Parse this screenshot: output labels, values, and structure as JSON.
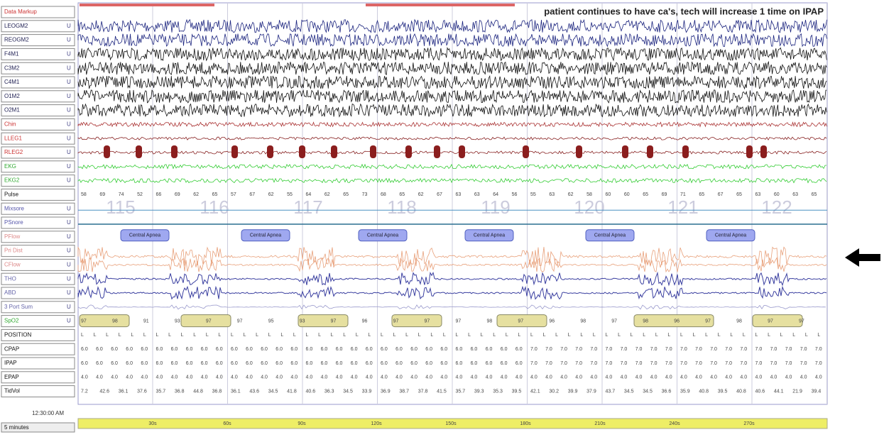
{
  "sidebar": {
    "channels": [
      "Data Markup",
      "LEOGM2",
      "REOGM2",
      "F4M1",
      "C3M2",
      "C4M1",
      "O1M2",
      "O2M1",
      "Chin",
      "LLEG1",
      "RLEG2",
      "EKG",
      "EKG2",
      "Pulse",
      "Mixsore",
      "PSnore",
      "PFlow",
      "Pri Dist",
      "CFlow",
      "THO",
      "ABD",
      "3 Port Sum",
      "SpO2",
      "POSITION",
      "CPAP",
      "IPAP",
      "EPAP",
      "TidVol"
    ],
    "clock": "12:30:00 AM",
    "epoch_length": "5 minutes"
  },
  "annotation": "patient continues to have ca's, tech will increase 1 time on IPAP",
  "events": [
    "Central Apnea",
    "Central Apnea",
    "Central Apnea",
    "Central Apnea",
    "Central Apnea",
    "Central Apnea"
  ],
  "epochs": [
    "115",
    "116",
    "117",
    "118",
    "119",
    "120",
    "121",
    "122"
  ],
  "rows": {
    "pulse": [
      "58",
      "69",
      "74",
      "52",
      "66",
      "69",
      "62",
      "65",
      "57",
      "67",
      "62",
      "55",
      "64",
      "62",
      "65",
      "73",
      "68",
      "65",
      "62",
      "67",
      "63",
      "63",
      "64",
      "56",
      "55",
      "63",
      "62",
      "58",
      "60",
      "60",
      "65",
      "69",
      "71",
      "65",
      "67",
      "65",
      "63",
      "60",
      "63",
      "65"
    ],
    "spo2": [
      "97",
      "98",
      "91",
      "93",
      "97",
      "97",
      "95",
      "93",
      "97",
      "96",
      "97",
      "97",
      "97",
      "98",
      "97",
      "96",
      "98",
      "97",
      "98",
      "96",
      "97",
      "98",
      "97",
      "97"
    ],
    "position": [
      "L",
      "L",
      "L",
      "L",
      "L",
      "L",
      "L",
      "L",
      "L",
      "L",
      "L",
      "L",
      "L",
      "L",
      "L",
      "L",
      "L",
      "L",
      "L",
      "L",
      "L",
      "L",
      "L",
      "L",
      "L",
      "L",
      "L",
      "L",
      "L",
      "L",
      "L",
      "L",
      "L",
      "L",
      "L",
      "L",
      "L",
      "L",
      "L",
      "L",
      "L",
      "L",
      "L",
      "L",
      "L",
      "L",
      "L",
      "L",
      "L",
      "L",
      "L",
      "L",
      "L",
      "L",
      "L",
      "L",
      "L",
      "L",
      "L",
      "L"
    ],
    "cpap": [
      "6.0",
      "6.0",
      "6.0",
      "6.0",
      "6.0",
      "6.0",
      "6.0",
      "6.0",
      "6.0",
      "6.0",
      "6.0",
      "6.0",
      "6.0",
      "6.0",
      "6.0",
      "6.0",
      "6.0",
      "6.0",
      "6.0",
      "6.0",
      "6.0",
      "6.0",
      "6.0",
      "6.0",
      "6.0",
      "6.0",
      "6.0",
      "6.0",
      "6.0",
      "6.0",
      "7.0",
      "7.0",
      "7.0",
      "7.0",
      "7.0",
      "7.0",
      "7.0",
      "7.0",
      "7.0",
      "7.0",
      "7.0",
      "7.0",
      "7.0",
      "7.0",
      "7.0",
      "7.0",
      "7.0",
      "7.0",
      "7.0",
      "7.0"
    ],
    "ipap": [
      "6.0",
      "6.0",
      "6.0",
      "6.0",
      "6.0",
      "6.0",
      "6.0",
      "6.0",
      "6.0",
      "6.0",
      "6.0",
      "6.0",
      "6.0",
      "6.0",
      "6.0",
      "6.0",
      "6.0",
      "6.0",
      "6.0",
      "6.0",
      "6.0",
      "6.0",
      "6.0",
      "6.0",
      "6.0",
      "6.0",
      "6.0",
      "6.0",
      "6.0",
      "6.0",
      "7.0",
      "7.0",
      "7.0",
      "7.0",
      "7.0",
      "7.0",
      "7.0",
      "7.0",
      "7.0",
      "7.0",
      "7.0",
      "7.0",
      "7.0",
      "7.0",
      "7.0",
      "7.0",
      "7.0",
      "7.0",
      "7.0",
      "7.0"
    ],
    "epap": [
      "4.0",
      "4.0",
      "4.0",
      "4.0",
      "4.0",
      "4.0",
      "4.0",
      "4.0",
      "4.0",
      "4.0",
      "4.0",
      "4.0",
      "4.0",
      "4.0",
      "4.0",
      "4.0",
      "4.0",
      "4.0",
      "4.0",
      "4.0",
      "4.0",
      "4.0",
      "4.0",
      "4.0",
      "4.0",
      "4.0",
      "4.0",
      "4.0",
      "4.0",
      "4.0",
      "4.0",
      "4.0",
      "4.0",
      "4.0",
      "4.0",
      "4.0",
      "4.0",
      "4.0",
      "4.0",
      "4.0",
      "4.0",
      "4.0",
      "4.0",
      "4.0",
      "4.0",
      "4.0",
      "4.0",
      "4.0",
      "4.0",
      "4.0"
    ],
    "tidvol": [
      "7.2",
      "42.6",
      "36.1",
      "37.6",
      "35.7",
      "36.8",
      "44.8",
      "36.8",
      "36.1",
      "43.6",
      "34.5",
      "41.8",
      "40.6",
      "36.3",
      "34.5",
      "33.9",
      "36.9",
      "38.7",
      "37.8",
      "41.5",
      "35.7",
      "39.3",
      "35.3",
      "39.5",
      "42.1",
      "30.2",
      "39.9",
      "37.9",
      "43.7",
      "34.5",
      "34.5",
      "36.6",
      "35.9",
      "40.8",
      "39.5",
      "40.8",
      "40.6",
      "44.1",
      "21.9",
      "39.4"
    ]
  },
  "time_axis": [
    "30s",
    "60s",
    "90s",
    "120s",
    "150s",
    "180s",
    "210s",
    "240s",
    "270s"
  ]
}
